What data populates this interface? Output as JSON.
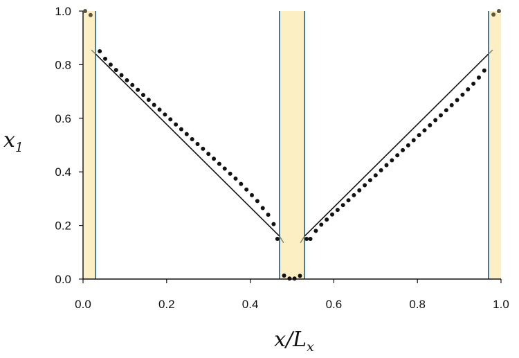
{
  "chart_data": {
    "type": "scatter",
    "title": "",
    "xlabel": "x/L",
    "xlabel_subscript": "x",
    "ylabel": "x",
    "ylabel_subscript": "1",
    "xlim": [
      0.0,
      1.0
    ],
    "ylim": [
      0.0,
      1.0
    ],
    "xticks": [
      0.0,
      0.2,
      0.4,
      0.6,
      0.8,
      1.0
    ],
    "xtick_labels": [
      "0.0",
      "0.2",
      "0.4",
      "0.6",
      "0.8",
      "1.0"
    ],
    "yticks": [
      0.0,
      0.2,
      0.4,
      0.6,
      0.8,
      1.0
    ],
    "ytick_labels": [
      "0.0",
      "0.2",
      "0.4",
      "0.6",
      "0.8",
      "1.0"
    ],
    "grid": false,
    "legend": "none",
    "shaded_bands": [
      {
        "x": [
          0.0,
          0.03
        ]
      },
      {
        "x": [
          0.47,
          0.53
        ]
      },
      {
        "x": [
          0.97,
          1.0
        ]
      }
    ],
    "series": [
      {
        "kind": "points",
        "color": "#111111",
        "x": [
          0.005,
          0.018,
          0.04,
          0.053,
          0.066,
          0.079,
          0.092,
          0.105,
          0.118,
          0.131,
          0.144,
          0.157,
          0.17,
          0.183,
          0.196,
          0.209,
          0.222,
          0.235,
          0.248,
          0.261,
          0.274,
          0.287,
          0.3,
          0.313,
          0.326,
          0.339,
          0.352,
          0.365,
          0.378,
          0.391,
          0.404,
          0.417,
          0.43,
          0.443,
          0.456,
          0.481,
          0.494,
          0.506,
          0.519,
          0.544,
          0.557,
          0.57,
          0.583,
          0.596,
          0.609,
          0.622,
          0.635,
          0.648,
          0.661,
          0.674,
          0.687,
          0.7,
          0.713,
          0.726,
          0.739,
          0.752,
          0.765,
          0.778,
          0.791,
          0.804,
          0.817,
          0.83,
          0.843,
          0.856,
          0.869,
          0.882,
          0.895,
          0.908,
          0.921,
          0.934,
          0.947,
          0.96,
          0.982,
          0.995
        ],
        "y": [
          1.0,
          0.985,
          0.85,
          0.822,
          0.8,
          0.78,
          0.761,
          0.742,
          0.724,
          0.706,
          0.687,
          0.669,
          0.65,
          0.632,
          0.614,
          0.596,
          0.577,
          0.559,
          0.541,
          0.522,
          0.504,
          0.486,
          0.467,
          0.449,
          0.43,
          0.412,
          0.393,
          0.375,
          0.355,
          0.334,
          0.313,
          0.291,
          0.265,
          0.24,
          0.205,
          0.013,
          0.002,
          0.002,
          0.012,
          0.15,
          0.18,
          0.203,
          0.222,
          0.241,
          0.258,
          0.276,
          0.294,
          0.313,
          0.331,
          0.35,
          0.369,
          0.387,
          0.406,
          0.425,
          0.443,
          0.462,
          0.481,
          0.499,
          0.518,
          0.537,
          0.555,
          0.574,
          0.593,
          0.611,
          0.63,
          0.649,
          0.668,
          0.688,
          0.708,
          0.729,
          0.752,
          0.778,
          0.987,
          1.0
        ],
        "extra_points": [
          {
            "x": 0.465,
            "y": 0.15
          },
          {
            "x": 0.535,
            "y": 0.15
          }
        ]
      },
      {
        "kind": "line",
        "color": "#111111",
        "x": [
          0.03,
          0.47
        ],
        "y": [
          0.84,
          0.16
        ]
      },
      {
        "kind": "line",
        "color": "#111111",
        "x": [
          0.53,
          0.97
        ],
        "y": [
          0.16,
          0.84
        ]
      },
      {
        "kind": "line",
        "color": "#8a8a70",
        "x": [
          0.02,
          0.03
        ],
        "y": [
          0.855,
          0.84
        ]
      },
      {
        "kind": "line",
        "color": "#8a8a70",
        "x": [
          0.47,
          0.48
        ],
        "y": [
          0.16,
          0.135
        ]
      },
      {
        "kind": "line",
        "color": "#8a8a70",
        "x": [
          0.52,
          0.53
        ],
        "y": [
          0.135,
          0.16
        ]
      },
      {
        "kind": "line",
        "color": "#8a8a70",
        "x": [
          0.97,
          0.98
        ],
        "y": [
          0.84,
          0.855
        ]
      }
    ],
    "band_fill_color": "#fdefc4",
    "band_edge_color": "#1f5f8b"
  }
}
